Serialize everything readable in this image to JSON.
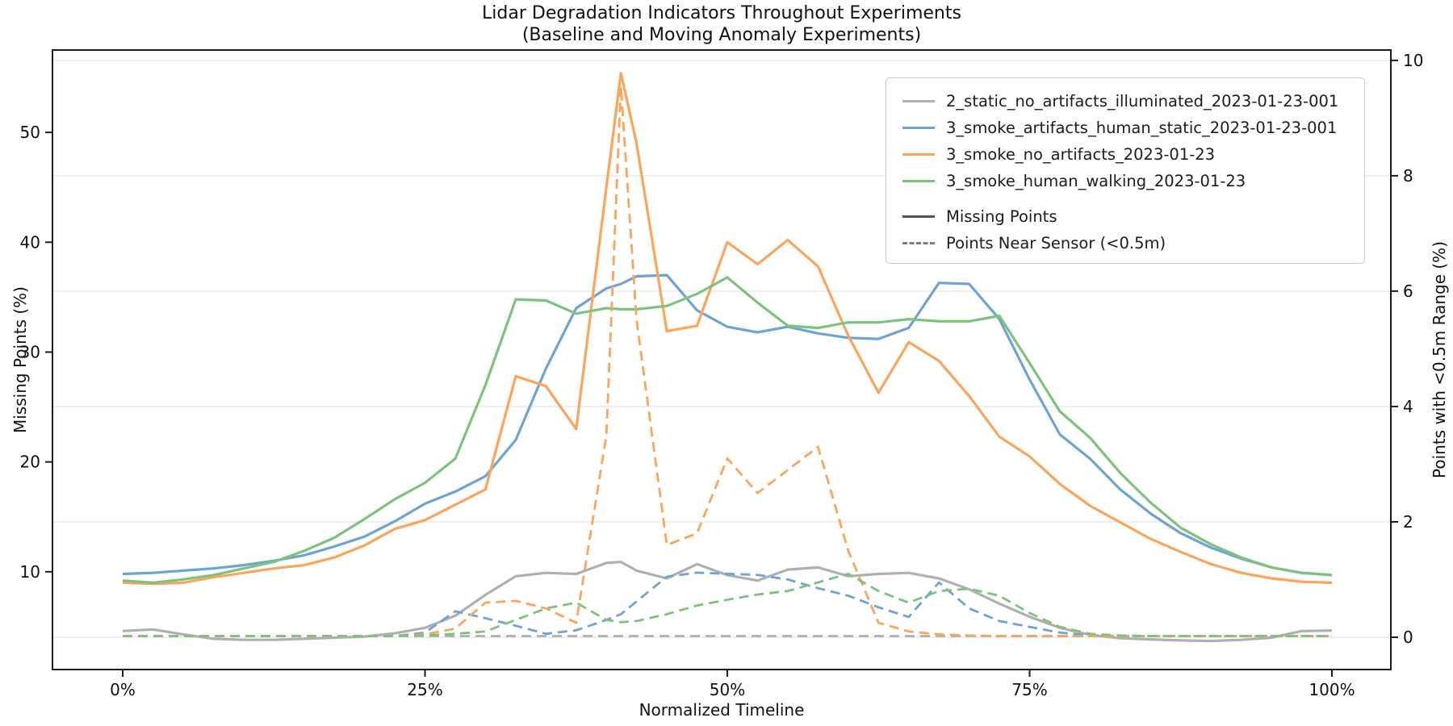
{
  "figure": {
    "title_line1": "Lidar Degradation Indicators Throughout Experiments",
    "title_line2": "(Baseline and Moving Anomaly Experiments)"
  },
  "chart_data": {
    "type": "line",
    "title": "Lidar Degradation Indicators Throughout Experiments",
    "subtitle": "(Baseline and Moving Anomaly Experiments)",
    "xlabel": "Normalized Timeline",
    "ylabel_left": "Missing Points (%)",
    "ylabel_right": "Points with <0.5m Range (%)",
    "x_tick_labels": [
      "0%",
      "25%",
      "50%",
      "75%",
      "100%"
    ],
    "x_tick_values": [
      0,
      25,
      50,
      75,
      100
    ],
    "y_left_ticks": [
      10,
      20,
      30,
      40,
      50
    ],
    "y_left_range": [
      1.1,
      57.5
    ],
    "y_right_ticks": [
      0,
      2,
      4,
      6,
      8,
      10
    ],
    "y_right_range": [
      -0.56,
      10.18
    ],
    "grid": "horizontal-on-right-axis-ticks",
    "legend_position": "upper right",
    "colors": {
      "gray": "#b0b0b0",
      "blue": "#6da4d4",
      "orange": "#fba55c",
      "green": "#7cc47b",
      "legend_solid": "#555555",
      "legend_dashed": "#7f7f7f",
      "gridline": "#e7e7e7",
      "spine": "#1c1c1c"
    },
    "x": [
      0,
      2.5,
      5,
      7.5,
      10,
      12.5,
      15,
      17.5,
      20,
      22.5,
      25,
      27.5,
      30,
      32.5,
      35,
      37.5,
      40,
      41.2,
      42.5,
      45,
      47.5,
      50,
      52.5,
      55,
      57.5,
      60,
      62.5,
      65,
      67.5,
      70,
      72.5,
      75,
      77.5,
      80,
      82.5,
      85,
      87.5,
      90,
      92.5,
      95,
      97.5,
      100
    ],
    "series": [
      {
        "name": "2_static_no_artifacts_illuminated_2023-01-23-001",
        "color": "#b0b0b0",
        "axis": "left",
        "style": "solid",
        "metric": "Missing Points",
        "values": [
          4.6,
          4.75,
          4.3,
          3.9,
          3.8,
          3.8,
          3.9,
          4.0,
          4.1,
          4.4,
          4.9,
          6.0,
          7.9,
          9.6,
          9.9,
          9.8,
          10.8,
          10.9,
          10.1,
          9.4,
          10.7,
          9.7,
          9.2,
          10.2,
          10.4,
          9.6,
          9.8,
          9.9,
          9.4,
          8.4,
          7.1,
          5.9,
          4.9,
          4.25,
          3.95,
          3.85,
          3.75,
          3.7,
          3.8,
          4.0,
          4.6,
          4.65
        ]
      },
      {
        "name": "3_smoke_artifacts_human_static_2023-01-23-001",
        "color": "#6da4d4",
        "axis": "left",
        "style": "solid",
        "metric": "Missing Points",
        "values": [
          9.8,
          9.9,
          10.1,
          10.3,
          10.6,
          11.0,
          11.5,
          12.3,
          13.2,
          14.6,
          16.2,
          17.3,
          18.7,
          22.0,
          28.5,
          34.0,
          35.8,
          36.2,
          36.9,
          37.0,
          33.8,
          32.3,
          31.8,
          32.3,
          31.7,
          31.3,
          31.2,
          32.2,
          36.3,
          36.2,
          33.0,
          27.5,
          22.5,
          20.3,
          17.5,
          15.3,
          13.5,
          12.2,
          11.2,
          10.4,
          9.9,
          9.7
        ]
      },
      {
        "name": "3_smoke_no_artifacts_2023-01-23",
        "color": "#fba55c",
        "axis": "left",
        "style": "solid",
        "metric": "Missing Points",
        "values": [
          9.0,
          8.9,
          9.0,
          9.5,
          9.9,
          10.3,
          10.6,
          11.3,
          12.4,
          13.9,
          14.7,
          16.1,
          17.5,
          27.8,
          26.9,
          23.0,
          45.0,
          55.4,
          49.0,
          31.9,
          32.4,
          40.0,
          38.0,
          40.2,
          37.8,
          31.5,
          26.3,
          30.9,
          29.2,
          26.0,
          22.3,
          20.5,
          18.0,
          16.0,
          14.5,
          13.0,
          11.8,
          10.7,
          9.9,
          9.4,
          9.1,
          9.0
        ]
      },
      {
        "name": "3_smoke_human_walking_2023-01-23",
        "color": "#7cc47b",
        "axis": "left",
        "style": "solid",
        "metric": "Missing Points",
        "values": [
          9.2,
          9.0,
          9.3,
          9.7,
          10.3,
          10.9,
          11.9,
          13.1,
          14.8,
          16.6,
          18.1,
          20.3,
          27.0,
          34.8,
          34.7,
          33.5,
          34.0,
          33.9,
          33.9,
          34.2,
          35.3,
          36.8,
          34.5,
          32.4,
          32.2,
          32.7,
          32.7,
          33.0,
          32.8,
          32.8,
          33.3,
          29.0,
          24.6,
          22.2,
          19.0,
          16.3,
          14.0,
          12.5,
          11.3,
          10.4,
          9.9,
          9.7
        ]
      },
      {
        "name": "2_static_no_artifacts_illuminated_2023-01-23-001",
        "color": "#b0b0b0",
        "axis": "right",
        "style": "dashed",
        "metric": "Points Near Sensor (<0.5m)",
        "values": [
          0.02,
          0.02,
          0.02,
          0.02,
          0.02,
          0.02,
          0.02,
          0.02,
          0.02,
          0.02,
          0.02,
          0.02,
          0.02,
          0.02,
          0.02,
          0.02,
          0.02,
          0.02,
          0.02,
          0.02,
          0.02,
          0.02,
          0.02,
          0.02,
          0.02,
          0.02,
          0.02,
          0.02,
          0.02,
          0.02,
          0.02,
          0.02,
          0.02,
          0.02,
          0.02,
          0.02,
          0.02,
          0.02,
          0.02,
          0.02,
          0.02,
          0.02
        ]
      },
      {
        "name": "3_smoke_artifacts_human_static_2023-01-23-001",
        "color": "#6da4d4",
        "axis": "right",
        "style": "dashed",
        "metric": "Points Near Sensor (<0.5m)",
        "values": [
          0.02,
          0.02,
          0.02,
          0.02,
          0.02,
          0.02,
          0.02,
          0.02,
          0.02,
          0.02,
          0.08,
          0.45,
          0.33,
          0.2,
          0.06,
          0.12,
          0.3,
          0.4,
          0.62,
          1.05,
          1.12,
          1.1,
          1.08,
          1.0,
          0.85,
          0.72,
          0.52,
          0.35,
          0.95,
          0.5,
          0.28,
          0.18,
          0.08,
          0.03,
          0.02,
          0.02,
          0.02,
          0.02,
          0.02,
          0.02,
          0.02,
          0.02
        ]
      },
      {
        "name": "3_smoke_no_artifacts_2023-01-23",
        "color": "#fba55c",
        "axis": "right",
        "style": "dashed",
        "metric": "Points Near Sensor (<0.5m)",
        "values": [
          0.02,
          0.02,
          0.02,
          0.02,
          0.02,
          0.02,
          0.02,
          0.02,
          0.02,
          0.02,
          0.05,
          0.15,
          0.6,
          0.63,
          0.5,
          0.25,
          3.5,
          9.55,
          5.5,
          1.6,
          1.8,
          3.1,
          2.5,
          2.9,
          3.3,
          1.5,
          0.25,
          0.1,
          0.05,
          0.03,
          0.02,
          0.02,
          0.02,
          0.02,
          0.02,
          0.02,
          0.02,
          0.02,
          0.02,
          0.02,
          0.02,
          0.02
        ]
      },
      {
        "name": "3_smoke_human_walking_2023-01-23",
        "color": "#7cc47b",
        "axis": "right",
        "style": "dashed",
        "metric": "Points Near Sensor (<0.5m)",
        "values": [
          0.02,
          0.02,
          0.02,
          0.02,
          0.02,
          0.02,
          0.02,
          0.02,
          0.02,
          0.02,
          0.03,
          0.06,
          0.1,
          0.3,
          0.5,
          0.6,
          0.3,
          0.26,
          0.28,
          0.4,
          0.55,
          0.65,
          0.74,
          0.8,
          0.95,
          1.1,
          0.8,
          0.6,
          0.8,
          0.84,
          0.72,
          0.42,
          0.18,
          0.06,
          0.03,
          0.02,
          0.02,
          0.02,
          0.02,
          0.02,
          0.02,
          0.02
        ]
      }
    ],
    "legend_sessions": [
      {
        "label": "2_static_no_artifacts_illuminated_2023-01-23-001",
        "color": "#b0b0b0"
      },
      {
        "label": "3_smoke_artifacts_human_static_2023-01-23-001",
        "color": "#6da4d4"
      },
      {
        "label": "3_smoke_no_artifacts_2023-01-23",
        "color": "#fba55c"
      },
      {
        "label": "3_smoke_human_walking_2023-01-23",
        "color": "#7cc47b"
      }
    ],
    "style_legend": [
      {
        "label": "Missing Points",
        "style": "solid",
        "color": "#555555"
      },
      {
        "label": "Points Near Sensor (<0.5m)",
        "style": "dashed",
        "color": "#7f7f7f"
      }
    ]
  }
}
